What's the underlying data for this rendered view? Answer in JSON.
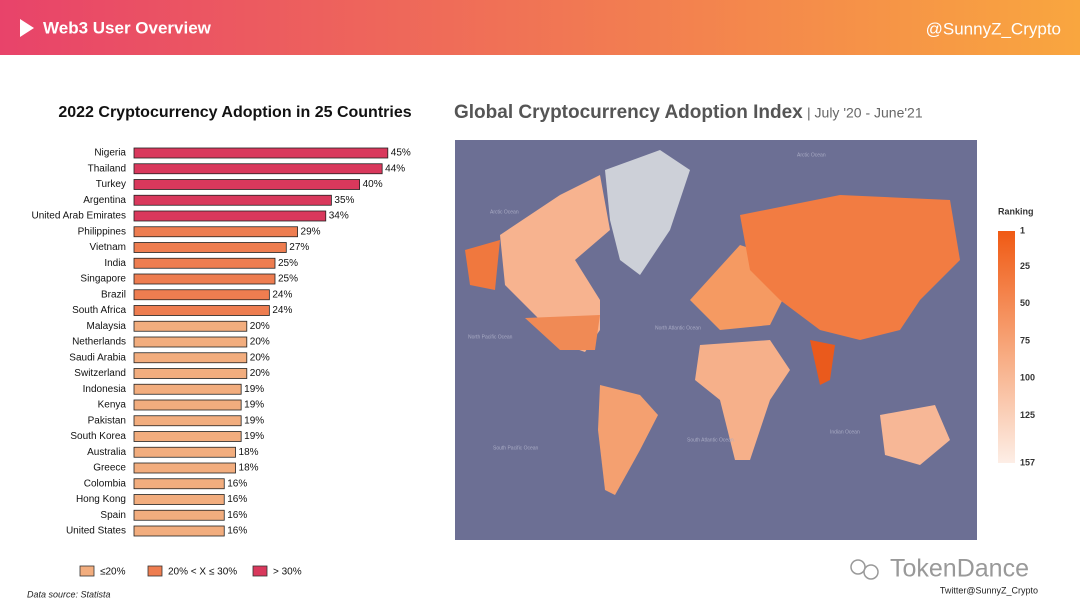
{
  "header": {
    "title": "Web3 User Overview",
    "handle": "@SunnyZ_Crypto"
  },
  "chart_data": {
    "type": "hbar",
    "title": "2022 Cryptocurrency Adoption in 25 Countries",
    "categories": [
      "Nigeria",
      "Thailand",
      "Turkey",
      "Argentina",
      "United Arab Emirates",
      "Philippines",
      "Vietnam",
      "India",
      "Singapore",
      "Brazil",
      "South Africa",
      "Malaysia",
      "Netherlands",
      "Saudi Arabia",
      "Switzerland",
      "Indonesia",
      "Kenya",
      "Pakistan",
      "South Korea",
      "Australia",
      "Greece",
      "Colombia",
      "Hong Kong",
      "Spain",
      "United States"
    ],
    "values": [
      45,
      44,
      40,
      35,
      34,
      29,
      27,
      25,
      25,
      24,
      24,
      20,
      20,
      20,
      20,
      19,
      19,
      19,
      19,
      18,
      18,
      16,
      16,
      16,
      16
    ],
    "value_labels": [
      "45%",
      "44%",
      "40%",
      "35%",
      "34%",
      "29%",
      "27%",
      "25%",
      "25%",
      "24%",
      "24%",
      "20%",
      "20%",
      "20%",
      "20%",
      "19%",
      "19%",
      "19%",
      "19%",
      "18%",
      "18%",
      "16%",
      "16%",
      "16%",
      "16%"
    ],
    "colors": [
      "#d9385c",
      "#d9385c",
      "#d9385c",
      "#d9385c",
      "#d9385c",
      "#ee7d50",
      "#ee7d50",
      "#ee7d50",
      "#ee7d50",
      "#ee7d50",
      "#ee7d50",
      "#f2ad7e",
      "#f2ad7e",
      "#f2ad7e",
      "#f2ad7e",
      "#f2ad7e",
      "#f2ad7e",
      "#f2ad7e",
      "#f2ad7e",
      "#f2ad7e",
      "#f2ad7e",
      "#f2ad7e",
      "#f2ad7e",
      "#f2ad7e",
      "#f2ad7e"
    ],
    "xlim": [
      0,
      50
    ],
    "legend": [
      {
        "label": "≤20%",
        "color": "#f2ad7e"
      },
      {
        "label": "20% < X ≤ 30%",
        "color": "#ee7d50"
      },
      {
        "label": "> 30%",
        "color": "#d9385c"
      }
    ],
    "source": "Data source: Statista"
  },
  "map": {
    "title": "Global Cryptocurrency Adoption Index",
    "subtitle": "| July '20 - June'21",
    "legend_title": "Ranking",
    "legend_lim": [
      1,
      157
    ],
    "legend_ticks": [
      1,
      25,
      50,
      75,
      100,
      125,
      157
    ],
    "oceans": [
      "Arctic Ocean",
      "Arctic Ocean",
      "North Pacific Ocean",
      "North Atlantic Ocean",
      "South Pacific Ocean",
      "South Atlantic Ocean",
      "Indian Ocean"
    ]
  },
  "footer": {
    "brand": "TokenDance",
    "credit": "Twitter@SunnyZ_Crypto"
  }
}
